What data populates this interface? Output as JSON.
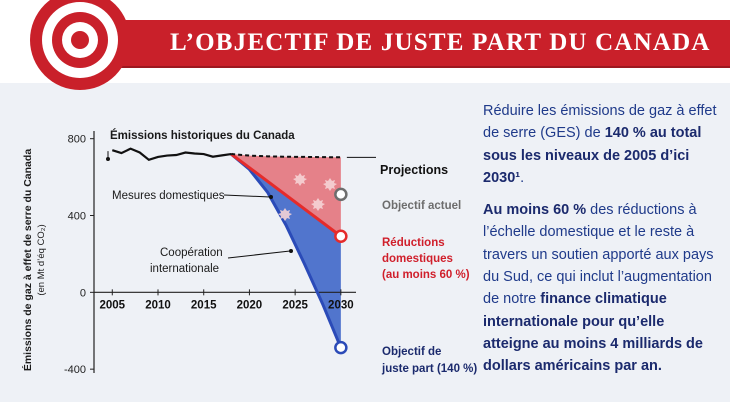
{
  "header": {
    "title": "L’OBJECTIF DE JUSTE PART DU CANADA"
  },
  "colors": {
    "banner": "#c9202a",
    "historic": "#111111",
    "domestic": "#e52b2b",
    "fairshare": "#2b4bb8",
    "text": "#1f3a8a"
  },
  "icons": [
    "target-icon",
    "maple-leaf-icon",
    "fish-icon"
  ],
  "chart_data": {
    "type": "line",
    "ylabel": "Émissions de gaz à effet de serre du Canada",
    "ylabel_sub": "(en Mt d’éq CO₂)",
    "xlim": [
      2003,
      2031
    ],
    "ylim": [
      -420,
      840
    ],
    "x_ticks": [
      2005,
      2010,
      2015,
      2020,
      2025,
      2030
    ],
    "y_ticks": [
      -400,
      0,
      400,
      800
    ],
    "series": [
      {
        "name": "Émissions historiques du Canada",
        "style": "solid",
        "x": [
          2005,
          2006,
          2007,
          2008,
          2009,
          2010,
          2011,
          2012,
          2013,
          2014,
          2015,
          2016,
          2017,
          2018
        ],
        "y": [
          740,
          725,
          748,
          728,
          690,
          705,
          712,
          715,
          728,
          723,
          720,
          706,
          713,
          720
        ]
      },
      {
        "name": "Projections",
        "style": "dashed",
        "x": [
          2018,
          2020,
          2022,
          2024,
          2026,
          2028,
          2030
        ],
        "y": [
          720,
          712,
          708,
          706,
          705,
          704,
          703
        ]
      },
      {
        "name": "Réductions domestiques (au moins 60 %)",
        "style": "solid",
        "x": [
          2018,
          2030
        ],
        "y": [
          720,
          292
        ]
      },
      {
        "name": "Objectif de juste part (140 %)",
        "style": "solid",
        "x": [
          2018,
          2020,
          2022,
          2024,
          2026,
          2028,
          2030
        ],
        "y": [
          720,
          640,
          520,
          350,
          150,
          -60,
          -288
        ]
      }
    ],
    "points": [
      {
        "label": "Objectif actuel",
        "x": 2030,
        "y": 510
      },
      {
        "label": "Réductions domestiques (au moins 60 %)",
        "x": 2030,
        "y": 292
      },
      {
        "label": "Objectif de juste part (140 %)",
        "x": 2030,
        "y": -288
      }
    ],
    "areas": [
      {
        "name": "Mesures domestiques",
        "color": "#e36d75"
      },
      {
        "name": "Coopération internationale",
        "color": "#3f67c9"
      }
    ],
    "annotations": {
      "historic": "Émissions historiques du Canada",
      "projections": "Projections",
      "objectif_actuel": "Objectif actuel",
      "reductions_1": "Réductions",
      "reductions_2": "domestiques",
      "reductions_3": "(au moins 60 %)",
      "juste_1": "Objectif de",
      "juste_2": "juste part (140 %)",
      "mesures": "Mesures domestiques",
      "coop_1": "Coopération",
      "coop_2": "internationale"
    }
  },
  "side_text": {
    "p1_a": "Réduire les émissions de gaz à effet de serre (GES) de ",
    "p1_b": "140 % au total sous les niveaux de 2005 d’ici 2030¹",
    "p1_c": ".",
    "p2_a": "Au moins 60 %",
    "p2_b": " des réductions à l’échelle domestique et le reste à travers un soutien apporté aux pays du Sud, ce qui inclut l’augmentation de notre ",
    "p2_c": "finance climatique internationale pour qu’elle atteigne au moins 4 milliards de dollars américains par an."
  }
}
